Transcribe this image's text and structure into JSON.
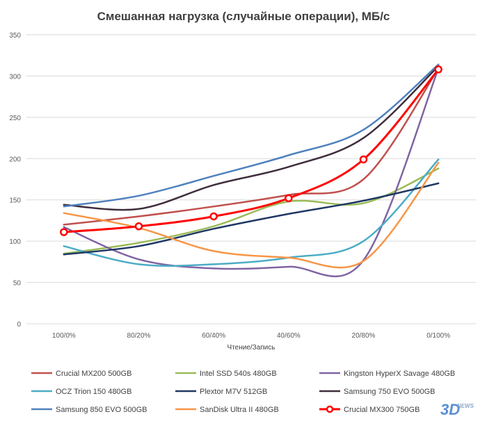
{
  "chart_data": {
    "type": "line",
    "title": "Смешанная нагрузка (случайные операции), МБ/с",
    "xlabel": "Чтение/Запись",
    "ylabel": "",
    "categories": [
      "100/0%",
      "80/20%",
      "60/40%",
      "40/60%",
      "20/80%",
      "0/100%"
    ],
    "ylim": [
      0,
      350
    ],
    "yticks": [
      0,
      50,
      100,
      150,
      200,
      250,
      300,
      350
    ],
    "grid": true,
    "legend_position": "bottom",
    "series": [
      {
        "name": "Crucial MX200 500GB",
        "color": "#c0504d",
        "values": [
          120,
          130,
          142,
          156,
          175,
          309
        ],
        "markers": false
      },
      {
        "name": "Intel SSD 540s 480GB",
        "color": "#9bbb59",
        "values": [
          85,
          98,
          118,
          148,
          146,
          188
        ],
        "markers": false
      },
      {
        "name": "Kingston HyperX Savage 480GB",
        "color": "#8064a2",
        "values": [
          117,
          78,
          67,
          69,
          77,
          309
        ],
        "markers": false
      },
      {
        "name": "OCZ Trion 150 480GB",
        "color": "#4bacc6",
        "values": [
          94,
          72,
          72,
          80,
          100,
          199
        ],
        "markers": false
      },
      {
        "name": "Plextor M7V 512GB",
        "color": "#1f3864",
        "values": [
          84,
          94,
          115,
          133,
          149,
          170
        ],
        "markers": false
      },
      {
        "name": "Samsung 750 EVO 500GB",
        "color": "#3f2d3d",
        "values": [
          144,
          139,
          168,
          190,
          225,
          312
        ],
        "markers": false
      },
      {
        "name": "Samsung 850 EVO 500GB",
        "color": "#4f81bd",
        "values": [
          142,
          155,
          179,
          204,
          235,
          314
        ],
        "markers": false
      },
      {
        "name": "SanDisk Ultra II 480GB",
        "color": "#f79646",
        "values": [
          134,
          116,
          88,
          80,
          76,
          195
        ],
        "markers": false
      },
      {
        "name": "Crucial MX300 750GB",
        "color": "#ff0000",
        "values": [
          111,
          118,
          130,
          152,
          199,
          308
        ],
        "markers": true
      }
    ]
  },
  "watermark": {
    "main": "3D",
    "sub": "NEWS"
  }
}
